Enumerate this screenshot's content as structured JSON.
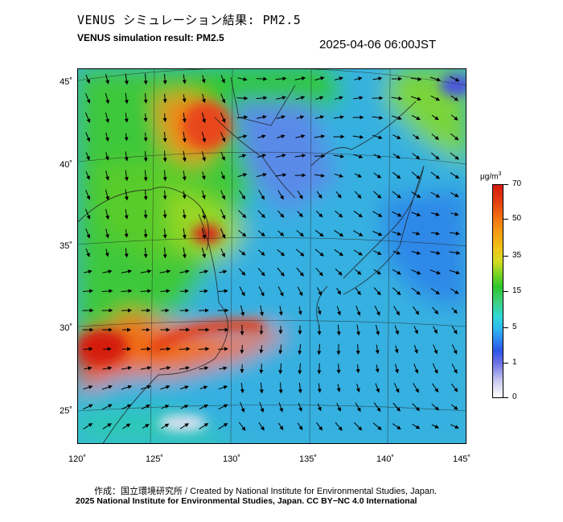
{
  "header": {
    "title_jp": "VENUS シミュレーション結果: PM2.5",
    "title_en": "VENUS simulation result: PM2.5",
    "timestamp": "2025-04-06 06:00JST"
  },
  "map": {
    "lat_labels": [
      "45˚",
      "40˚",
      "35˚",
      "30˚",
      "25˚"
    ],
    "lon_labels": [
      "120˚",
      "125˚",
      "130˚",
      "135˚",
      "140˚",
      "145˚"
    ],
    "lat_range": [
      23,
      46
    ],
    "lon_range": [
      120,
      145
    ]
  },
  "colorbar": {
    "unit": "μg/m",
    "unit_sup": "3",
    "labels": [
      "70",
      "50",
      "35",
      "15",
      "5",
      "1",
      "0"
    ],
    "colors": [
      "#d41a10",
      "#f59b12",
      "#d6dc20",
      "#2ec82c",
      "#2fb6f0",
      "#2d56e8",
      "#ffffff"
    ]
  },
  "footer": {
    "credit_line1": "作成：国立環境研究所 / Created by National Institute for Environmental Studies, Japan.",
    "credit_line2": "2025 National Institute for Environmental Studies, Japan. CC BY−NC 4.0 International"
  }
}
